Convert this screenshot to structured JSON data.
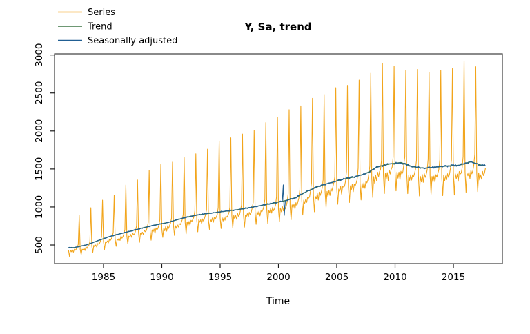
{
  "chart_data": {
    "type": "line",
    "title": "Y, Sa, trend",
    "xlabel": "Time",
    "ylabel": "",
    "grid": false,
    "legend_position": "top-left",
    "axis_color": "#3c3c3c",
    "tick_color": "#1a1a1a",
    "text_color": "#000000",
    "x_ticks": [
      1985,
      1990,
      1995,
      2000,
      2005,
      2010,
      2015
    ],
    "y_ticks": [
      500,
      1000,
      1500,
      2000,
      2500,
      3000
    ],
    "xlim": [
      1980.8,
      2019.2
    ],
    "ylim": [
      255,
      3015
    ],
    "legend": [
      {
        "label": "Series",
        "color": "#F2A51B"
      },
      {
        "label": "Trend",
        "color": "#3E7747"
      },
      {
        "label": "Seasonally adjusted",
        "color": "#215F93"
      }
    ],
    "generator": {
      "frequency": "monthly",
      "start_year": 1982,
      "end_year": 2017,
      "end_time": 2017.75,
      "years": [
        1982,
        1983,
        1984,
        1985,
        1986,
        1987,
        1988,
        1989,
        1990,
        1991,
        1992,
        1993,
        1994,
        1995,
        1996,
        1997,
        1998,
        1999,
        2000,
        2001,
        2002,
        2003,
        2004,
        2005,
        2006,
        2007,
        2008,
        2009,
        2010,
        2011,
        2012,
        2013,
        2014,
        2015,
        2016,
        2017
      ],
      "trend_by_year": [
        465,
        500,
        555,
        610,
        650,
        690,
        730,
        765,
        795,
        840,
        880,
        905,
        925,
        945,
        965,
        990,
        1020,
        1050,
        1080,
        1125,
        1210,
        1275,
        1320,
        1365,
        1395,
        1440,
        1530,
        1565,
        1585,
        1530,
        1510,
        1525,
        1540,
        1550,
        1595,
        1545
      ],
      "dec_peaks_by_year": [
        890,
        990,
        1090,
        1155,
        1290,
        1355,
        1480,
        1560,
        1590,
        1650,
        1700,
        1760,
        1870,
        1910,
        1960,
        2010,
        2110,
        2180,
        2280,
        2330,
        2430,
        2480,
        2570,
        2600,
        2670,
        2760,
        2890,
        2850,
        2800,
        2810,
        2770,
        2800,
        2820,
        2915,
        2845
      ],
      "seasonal_factors_jan_to_nov": [
        0.92,
        0.76,
        0.92,
        0.88,
        0.93,
        0.87,
        0.94,
        0.91,
        0.94,
        0.98,
        1.06
      ],
      "series_irregular_amp": 0.015,
      "sa_noise_amp": 0.009,
      "sa_anomalies": [
        {
          "t": 2000.4167,
          "value": 1290
        },
        {
          "t": 2000.5,
          "value": 890
        }
      ]
    }
  }
}
